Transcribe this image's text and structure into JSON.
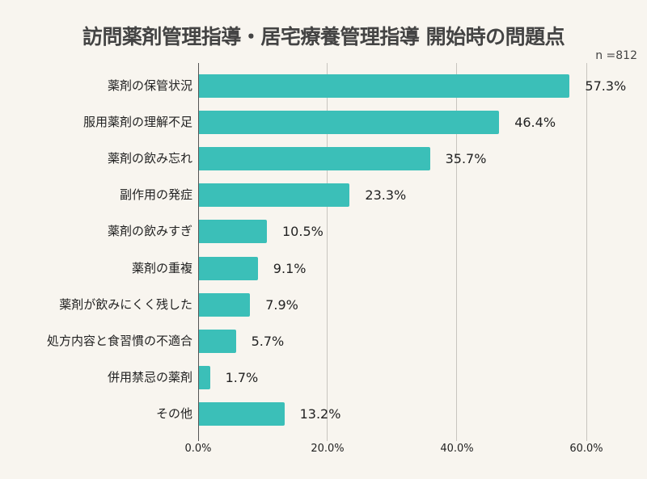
{
  "chart_data": {
    "type": "bar",
    "orientation": "horizontal",
    "title": "訪問薬剤管理指導・居宅療養管理指導 開始時の問題点",
    "annotation": "n=812",
    "categories": [
      "薬剤の保管状況",
      "服用薬剤の理解不足",
      "薬剤の飲み忘れ",
      "副作用の発症",
      "薬剤の飲みすぎ",
      "薬剤の重複",
      "薬剤が飲みにくく残した",
      "処方内容と食習慣の不適合",
      "併用禁忌の薬剤",
      "その他"
    ],
    "values": [
      57.3,
      46.4,
      35.7,
      23.3,
      10.5,
      9.1,
      7.9,
      5.7,
      1.7,
      13.2
    ],
    "value_labels": [
      "57.3%",
      "46.4%",
      "35.7%",
      "23.3%",
      "10.5%",
      "9.1%",
      "7.9%",
      "5.7%",
      "1.7%",
      "13.2%"
    ],
    "xlabel": "",
    "ylabel": "",
    "xlim": [
      0,
      60
    ],
    "x_ticks": [
      "0.0%",
      "20.0%",
      "40.0%",
      "60.0%"
    ],
    "grid": true,
    "bar_color": "#3bbfb8",
    "legend": null
  },
  "header": {
    "title": "訪問薬剤管理指導・居宅療養管理指導 開始時の問題点",
    "n": "n =812"
  },
  "ticks": [
    "0.0%",
    "20.0%",
    "40.0%",
    "60.0%"
  ]
}
